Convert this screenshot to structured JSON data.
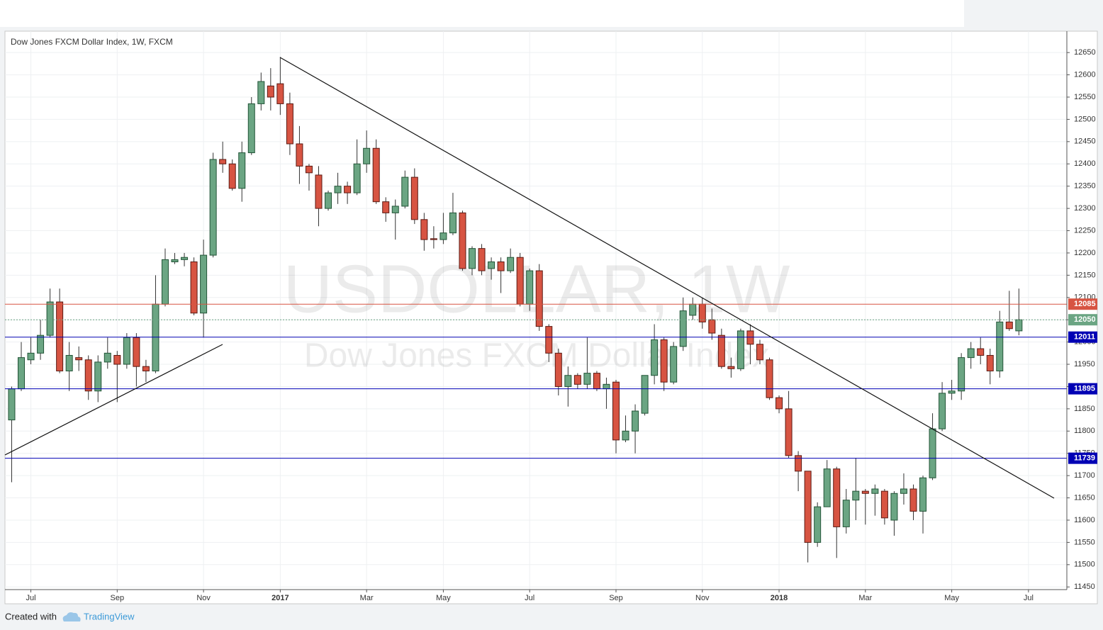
{
  "chart_data": {
    "type": "candlestick",
    "title": "Dow Jones FXCM Dollar Index, 1W, FXCM",
    "watermark": "USDOLLAR, 1W",
    "watermark_subtitle": "Dow Jones FXCM Dollar Index",
    "footer": {
      "text": "Created with",
      "brand": "TradingView"
    },
    "up_color": "#6ba583",
    "down_color": "#d75442",
    "grid": true,
    "ylim": [
      11444,
      12698
    ],
    "yticks": [
      11450,
      11500,
      11550,
      11600,
      11650,
      11700,
      11750,
      11800,
      11850,
      11900,
      11950,
      12000,
      12050,
      12100,
      12150,
      12200,
      12250,
      12300,
      12350,
      12400,
      12450,
      12500,
      12550,
      12600,
      12650
    ],
    "xlim": [
      -0.7,
      110
    ],
    "xticks": [
      {
        "value": 2,
        "label": "Jul"
      },
      {
        "value": 11,
        "label": "Sep"
      },
      {
        "value": 20,
        "label": "Nov"
      },
      {
        "value": 28,
        "label": "2017"
      },
      {
        "value": 37,
        "label": "Mar"
      },
      {
        "value": 45,
        "label": "May"
      },
      {
        "value": 54,
        "label": "Jul"
      },
      {
        "value": 63,
        "label": "Sep"
      },
      {
        "value": 72,
        "label": "Nov"
      },
      {
        "value": 80,
        "label": "2018"
      },
      {
        "value": 89,
        "label": "Mar"
      },
      {
        "value": 98,
        "label": "May"
      },
      {
        "value": 106,
        "label": "Jul"
      }
    ],
    "price_lines": [
      {
        "value": 12085,
        "color": "#d75442"
      },
      {
        "value": 12050,
        "color": "#6ba583"
      },
      {
        "value": 12011,
        "color": "#0000b4"
      },
      {
        "value": 11895,
        "color": "#0000b4"
      },
      {
        "value": 11739,
        "color": "#0000b4"
      }
    ],
    "open": [
      11825,
      11895,
      11960,
      11975,
      12015,
      12090,
      11935,
      11965,
      11960,
      11890,
      11955,
      11970,
      11950,
      12010,
      11945,
      11935,
      12085,
      12180,
      12185,
      12180,
      12065,
      12195,
      12410,
      12400,
      12345,
      12425,
      12535,
      12575,
      12580,
      12535,
      12445,
      12395,
      12375,
      12300,
      12335,
      12350,
      12335,
      12400,
      12435,
      12315,
      12290,
      12305,
      12370,
      12275,
      12232,
      12230,
      12245,
      12290,
      12165,
      12210,
      12165,
      12180,
      12160,
      12190,
      12085,
      12160,
      12035,
      11975,
      11900,
      11925,
      11905,
      11930,
      11895,
      11910,
      11780,
      11800,
      11840,
      11925,
      12005,
      11910,
      11990,
      12060,
      12085,
      12050,
      12015,
      11945,
      11940,
      12025,
      11995,
      11960,
      11875,
      11850,
      11745,
      11710,
      11550,
      11630,
      11715,
      11585,
      11645,
      11665,
      11660,
      11665,
      11600,
      11660,
      11670,
      11620,
      11695,
      11805,
      11885,
      11890,
      11965,
      11985,
      11970,
      11935,
      12045,
      12025
    ],
    "high": [
      11900,
      12000,
      12010,
      12050,
      12120,
      12120,
      12000,
      11990,
      11970,
      11970,
      12010,
      11980,
      12020,
      12020,
      11960,
      12150,
      12210,
      12200,
      12200,
      12190,
      12230,
      12425,
      12450,
      12410,
      12450,
      12550,
      12605,
      12615,
      12640,
      12560,
      12485,
      12400,
      12395,
      12340,
      12380,
      12360,
      12455,
      12475,
      12455,
      12325,
      12320,
      12385,
      12390,
      12290,
      12260,
      12290,
      12335,
      12295,
      12215,
      12220,
      12190,
      12190,
      12210,
      12200,
      12165,
      12175,
      12040,
      11985,
      11945,
      11930,
      12010,
      11935,
      11920,
      11915,
      11835,
      11860,
      11925,
      12040,
      12010,
      12000,
      12100,
      12100,
      12100,
      12075,
      12030,
      11965,
      12030,
      12040,
      12005,
      11965,
      11880,
      11890,
      11755,
      11710,
      11640,
      11735,
      11720,
      11670,
      11740,
      11670,
      11680,
      11670,
      11665,
      11705,
      11680,
      11700,
      11840,
      11910,
      11915,
      11975,
      12000,
      12010,
      11985,
      12070,
      12115,
      12120
    ],
    "low": [
      11685,
      11890,
      11950,
      11960,
      12010,
      11930,
      11890,
      11935,
      11870,
      11865,
      11940,
      11865,
      11940,
      11900,
      11910,
      11930,
      12080,
      12175,
      12170,
      12060,
      12010,
      12190,
      12380,
      12340,
      12315,
      12420,
      12520,
      12520,
      12510,
      12420,
      12355,
      12340,
      12260,
      12295,
      12310,
      12310,
      12330,
      12380,
      12310,
      12270,
      12230,
      12300,
      12265,
      12205,
      12210,
      12220,
      12240,
      12160,
      12150,
      12150,
      12140,
      12110,
      12155,
      12080,
      12070,
      12025,
      11955,
      11880,
      11855,
      11895,
      11895,
      11890,
      11850,
      11750,
      11775,
      11750,
      11835,
      11905,
      11890,
      11905,
      11980,
      12050,
      12030,
      12005,
      11940,
      11920,
      11935,
      11950,
      11950,
      11870,
      11840,
      11740,
      11665,
      11505,
      11540,
      11630,
      11515,
      11570,
      11600,
      11590,
      11610,
      11590,
      11565,
      11635,
      11600,
      11570,
      11690,
      11800,
      11870,
      11870,
      11940,
      11950,
      11905,
      11920,
      12025,
      12015
    ],
    "close": [
      11895,
      11965,
      11975,
      12015,
      12090,
      11935,
      11970,
      11960,
      11890,
      11955,
      11975,
      11950,
      12010,
      11945,
      11935,
      12085,
      12185,
      12185,
      12190,
      12065,
      12195,
      12410,
      12400,
      12345,
      12425,
      12535,
      12585,
      12550,
      12535,
      12445,
      12395,
      12380,
      12300,
      12335,
      12350,
      12335,
      12400,
      12435,
      12315,
      12290,
      12305,
      12370,
      12275,
      12230,
      12230,
      12245,
      12290,
      12165,
      12210,
      12160,
      12180,
      12160,
      12190,
      12085,
      12160,
      12035,
      11975,
      11900,
      11925,
      11905,
      11930,
      11895,
      11905,
      11780,
      11800,
      11845,
      11925,
      12005,
      11910,
      11990,
      12070,
      12085,
      12045,
      12020,
      11945,
      11940,
      12025,
      11995,
      11960,
      11875,
      11850,
      11745,
      11710,
      11550,
      11630,
      11715,
      11585,
      11645,
      11665,
      11660,
      11670,
      11605,
      11660,
      11670,
      11620,
      11695,
      11805,
      11885,
      11890,
      11965,
      11985,
      11970,
      11935,
      12045,
      12030,
      12050
    ]
  }
}
